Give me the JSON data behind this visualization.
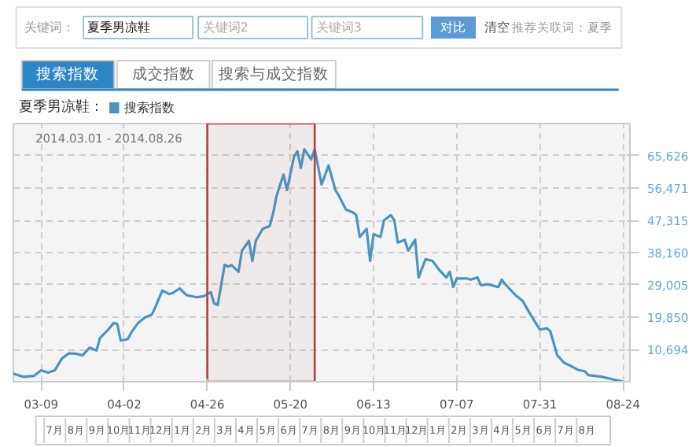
{
  "chart_data": {
    "type": "line",
    "subtitle": "2014.03.01 - 2014.08.26",
    "legend_title": "夏季男凉鞋：",
    "legend": "top left",
    "grid": true,
    "annotations": [
      "关键词：",
      "夏季男凉鞋",
      "关键词2",
      "关键词3",
      "对比",
      "清空",
      "推荐关联词：夏季",
      "搜索指数",
      "成交指数",
      "搜索与成交指数",
      "7月",
      "8月",
      "9月",
      "10月",
      "11月",
      "12月",
      "1月",
      "2月",
      "3月",
      "4月",
      "5月",
      "6月",
      "7月",
      "8月",
      "9月",
      "10月",
      "11月",
      "12月",
      "1月",
      "2月",
      "3月",
      "4月",
      "5月",
      "6月",
      "7月",
      "8月"
    ],
    "xlim": [
      "2014-03-01",
      "2014-08-26"
    ],
    "xticks": [
      {
        "value": "2014-03-09",
        "label": "03-09"
      },
      {
        "value": "2014-04-02",
        "label": "04-02"
      },
      {
        "value": "2014-04-26",
        "label": "04-26"
      },
      {
        "value": "2014-05-20",
        "label": "05-20"
      },
      {
        "value": "2014-06-13",
        "label": "06-13"
      },
      {
        "value": "2014-07-07",
        "label": "07-07"
      },
      {
        "value": "2014-07-31",
        "label": "07-31"
      },
      {
        "value": "2014-08-24",
        "label": "08-24"
      }
    ],
    "ylim": [
      1539,
      74781
    ],
    "yticks": [
      {
        "value": 10694,
        "label": "10,694"
      },
      {
        "value": 19850,
        "label": "19,850"
      },
      {
        "value": 29005,
        "label": "29,005"
      },
      {
        "value": 38160,
        "label": "38,160"
      },
      {
        "value": 47315,
        "label": "47,315"
      },
      {
        "value": 56471,
        "label": "56,471"
      },
      {
        "value": 65626,
        "label": "65,626"
      }
    ],
    "bands": [
      {
        "axis": "x",
        "from": "2014-04-26",
        "to": "2014-05-27",
        "color": "#b5403f"
      }
    ],
    "x": [
      "2014-03-01",
      "2014-03-04",
      "2014-03-07",
      "2014-03-09",
      "2014-03-11",
      "2014-03-13",
      "2014-03-15",
      "2014-03-17",
      "2014-03-19",
      "2014-03-21",
      "2014-03-23",
      "2014-03-25",
      "2014-03-26",
      "2014-03-28",
      "2014-03-30",
      "2014-03-31",
      "2014-04-01",
      "2014-04-03",
      "2014-04-04",
      "2014-04-06",
      "2014-04-08",
      "2014-04-10",
      "2014-04-11",
      "2014-04-13",
      "2014-04-15",
      "2014-04-16",
      "2014-04-18",
      "2014-04-20",
      "2014-04-23",
      "2014-04-25",
      "2014-04-27",
      "2014-04-28",
      "2014-04-29",
      "2014-05-01",
      "2014-05-02",
      "2014-05-03",
      "2014-05-05",
      "2014-05-06",
      "2014-05-08",
      "2014-05-09",
      "2014-05-10",
      "2014-05-12",
      "2014-05-14",
      "2014-05-15",
      "2014-05-16",
      "2014-05-18",
      "2014-05-19",
      "2014-05-21",
      "2014-05-22",
      "2014-05-23",
      "2014-05-24",
      "2014-05-26",
      "2014-05-27",
      "2014-05-29",
      "2014-05-31",
      "2014-06-02",
      "2014-06-03",
      "2014-06-05",
      "2014-06-07",
      "2014-06-08",
      "2014-06-09",
      "2014-06-11",
      "2014-06-12",
      "2014-06-13",
      "2014-06-15",
      "2014-06-16",
      "2014-06-18",
      "2014-06-19",
      "2014-06-20",
      "2014-06-22",
      "2014-06-23",
      "2014-06-25",
      "2014-06-26",
      "2014-06-28",
      "2014-06-30",
      "2014-07-02",
      "2014-07-04",
      "2014-07-05",
      "2014-07-06",
      "2014-07-07",
      "2014-07-10",
      "2014-07-11",
      "2014-07-13",
      "2014-07-14",
      "2014-07-16",
      "2014-07-19",
      "2014-07-20",
      "2014-07-21",
      "2014-07-24",
      "2014-07-26",
      "2014-07-28",
      "2014-07-31",
      "2014-08-02",
      "2014-08-03",
      "2014-08-05",
      "2014-08-07",
      "2014-08-09",
      "2014-08-11",
      "2014-08-13",
      "2014-08-14",
      "2014-08-18",
      "2014-08-21",
      "2014-08-24"
    ],
    "series": [
      {
        "name": "搜索指数",
        "color": "#4a95c0",
        "values": [
          3800,
          2900,
          3200,
          4800,
          4100,
          4800,
          8100,
          9600,
          9500,
          9000,
          11200,
          10400,
          13900,
          15900,
          18200,
          17900,
          13200,
          13600,
          15400,
          18200,
          19800,
          20600,
          22700,
          27400,
          26400,
          26700,
          28000,
          26100,
          25500,
          25800,
          26900,
          23700,
          23300,
          34700,
          34200,
          34600,
          32700,
          38700,
          41500,
          35800,
          41500,
          44900,
          45700,
          49300,
          54300,
          60300,
          55900,
          65300,
          66900,
          62200,
          67500,
          64600,
          67500,
          57500,
          62900,
          55900,
          54300,
          50400,
          49600,
          48800,
          42600,
          44900,
          35800,
          43400,
          42600,
          47300,
          48800,
          47300,
          41000,
          41800,
          38700,
          41800,
          31100,
          36300,
          35800,
          33200,
          31100,
          32700,
          28400,
          30800,
          30800,
          30500,
          31100,
          28900,
          29200,
          28400,
          30500,
          29200,
          26100,
          24500,
          21100,
          16300,
          16700,
          15900,
          9100,
          6900,
          6000,
          4900,
          4500,
          3400,
          2900,
          2200,
          1600
        ]
      }
    ]
  }
}
